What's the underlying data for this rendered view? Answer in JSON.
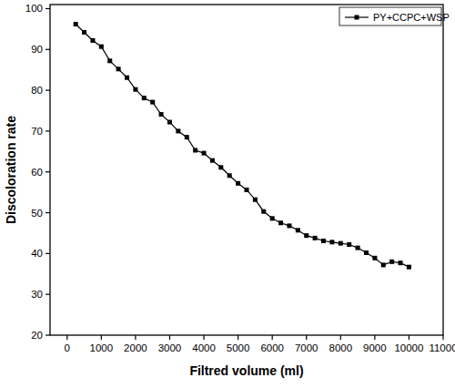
{
  "chart_data": {
    "type": "line",
    "x_label": "Filtred volume (ml)",
    "y_label": "Discoloration rate",
    "x": [
      250,
      500,
      750,
      1000,
      1250,
      1500,
      1750,
      2000,
      2250,
      2500,
      2750,
      3000,
      3250,
      3500,
      3750,
      4000,
      4250,
      4500,
      4750,
      5000,
      5250,
      5500,
      5750,
      6000,
      6250,
      6500,
      6750,
      7000,
      7250,
      7500,
      7750,
      8000,
      8250,
      8500,
      8750,
      9000,
      9250,
      9500,
      9750,
      10000
    ],
    "series": [
      {
        "name": "PY+CCPC+WSP",
        "color": "#000000",
        "marker": "square",
        "line_style": "solid",
        "values": [
          96.2,
          94.2,
          92.2,
          90.7,
          87.2,
          85.2,
          83.1,
          80.2,
          78.1,
          77.1,
          74.1,
          72.2,
          70.0,
          68.5,
          65.3,
          64.6,
          62.8,
          61.1,
          59.1,
          57.2,
          55.6,
          53.2,
          50.3,
          48.6,
          47.5,
          46.8,
          45.7,
          44.4,
          43.8,
          43.1,
          42.8,
          42.5,
          42.2,
          41.4,
          40.2,
          38.9,
          37.2,
          38.0,
          37.7,
          36.7
        ]
      }
    ],
    "xlim": [
      -500,
      11000
    ],
    "ylim": [
      20,
      101
    ],
    "xticks": [
      0,
      1000,
      2000,
      3000,
      4000,
      5000,
      6000,
      7000,
      8000,
      9000,
      10000,
      11000
    ],
    "yticks": [
      20,
      30,
      40,
      50,
      60,
      70,
      80,
      90,
      100
    ],
    "grid": false,
    "legend": "top-right"
  }
}
